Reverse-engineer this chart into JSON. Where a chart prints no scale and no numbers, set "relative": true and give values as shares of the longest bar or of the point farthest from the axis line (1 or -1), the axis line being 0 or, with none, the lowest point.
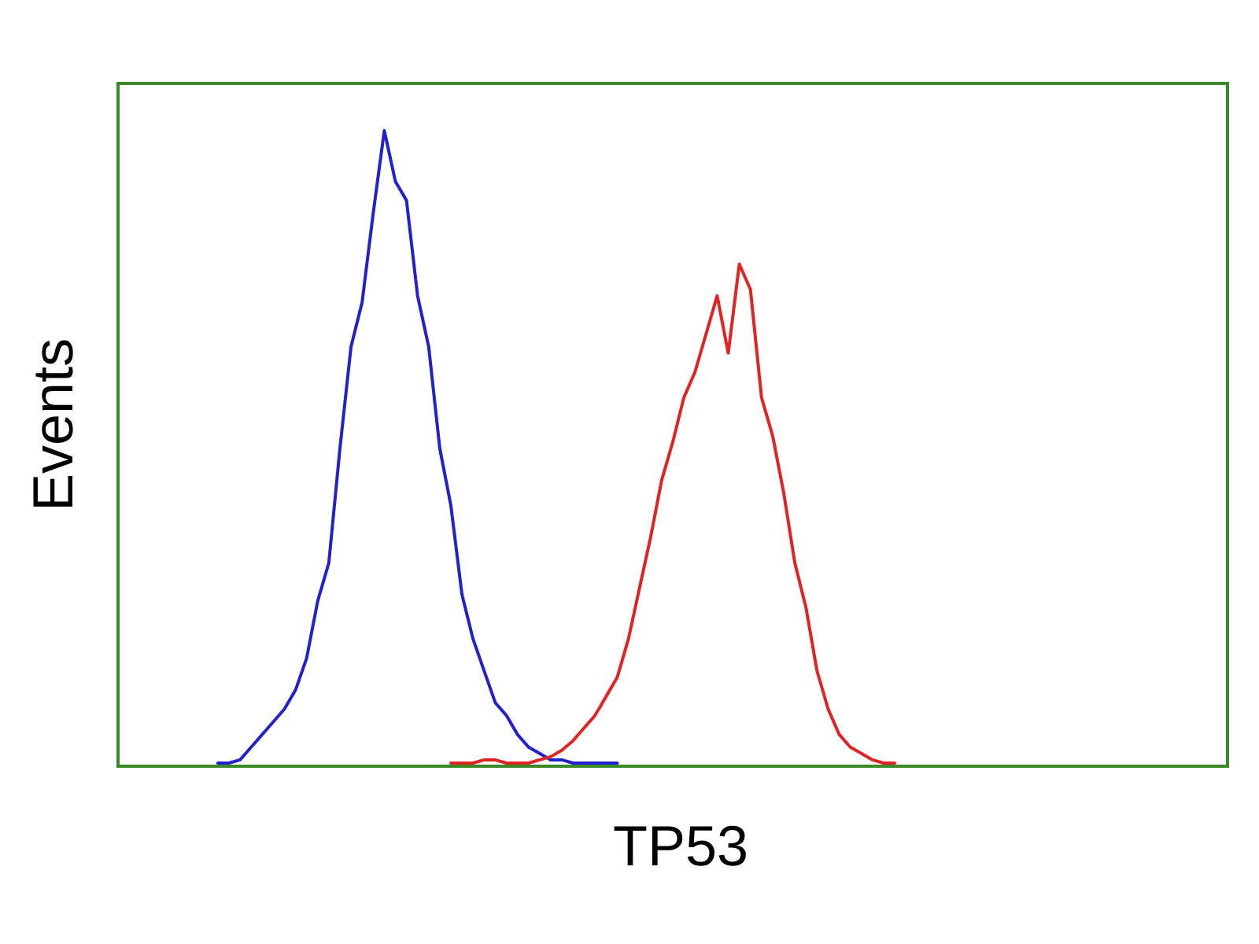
{
  "chart_data": {
    "type": "line",
    "relative": true,
    "xlabel": "TP53",
    "ylabel": "Events",
    "categories": [
      null,
      null,
      null,
      null,
      null,
      null,
      null,
      null,
      null,
      null,
      null,
      null,
      null,
      null,
      null,
      null,
      null,
      null,
      null,
      null,
      null,
      null,
      null,
      null,
      null,
      null,
      null,
      null,
      null,
      null,
      null,
      null,
      null,
      null,
      null,
      null,
      null,
      null,
      null,
      null,
      null,
      null,
      null,
      null,
      null,
      null,
      null,
      null,
      null,
      null,
      null,
      null,
      null,
      null,
      null,
      null,
      null,
      null,
      null,
      null,
      null,
      null,
      null,
      null,
      null,
      null,
      null,
      null,
      null,
      null,
      null,
      null,
      null,
      null,
      null,
      null,
      null,
      null,
      null,
      null,
      null,
      null,
      null,
      null,
      null,
      null,
      null,
      null,
      null,
      null,
      null,
      null,
      null,
      null,
      null,
      null,
      null,
      null,
      null,
      null,
      null
    ],
    "series": [
      {
        "color": "#2222cc",
        "values": [
          null,
          null,
          null,
          null,
          null,
          null,
          null,
          null,
          null,
          0.005,
          0.005,
          0.01,
          0.03,
          0.05,
          0.07,
          0.09,
          0.12,
          0.17,
          0.26,
          0.32,
          0.5,
          0.66,
          0.73,
          0.87,
          1.0,
          0.92,
          0.89,
          0.74,
          0.66,
          0.5,
          0.41,
          0.27,
          0.2,
          0.15,
          0.1,
          0.08,
          0.05,
          0.03,
          0.02,
          0.01,
          0.01,
          0.005,
          0.005,
          0.005,
          0.005,
          0.005,
          null,
          null,
          null,
          null,
          null,
          null,
          null,
          null,
          null,
          null,
          null,
          null,
          null,
          null,
          null,
          null,
          null,
          null,
          null,
          null,
          null,
          null,
          null,
          null,
          null,
          null,
          null,
          null,
          null,
          null,
          null,
          null,
          null,
          null,
          null,
          null,
          null,
          null,
          null,
          null,
          null,
          null,
          null,
          null,
          null,
          null,
          null,
          null,
          null,
          null,
          null,
          null,
          null,
          null,
          null
        ]
      },
      {
        "color": "#e02424",
        "values": [
          null,
          null,
          null,
          null,
          null,
          null,
          null,
          null,
          null,
          null,
          null,
          null,
          null,
          null,
          null,
          null,
          null,
          null,
          null,
          null,
          null,
          null,
          null,
          null,
          null,
          null,
          null,
          null,
          null,
          null,
          0.005,
          0.005,
          0.005,
          0.01,
          0.01,
          0.005,
          0.005,
          0.005,
          0.01,
          0.015,
          0.025,
          0.04,
          0.06,
          0.08,
          0.11,
          0.14,
          0.2,
          0.28,
          0.36,
          0.45,
          0.51,
          0.58,
          0.62,
          0.68,
          0.74,
          0.65,
          0.79,
          0.75,
          0.58,
          0.52,
          0.43,
          0.32,
          0.25,
          0.15,
          0.09,
          0.05,
          0.03,
          0.02,
          0.01,
          0.005,
          0.005,
          null,
          null,
          null,
          null,
          null,
          null,
          null,
          null,
          null,
          null,
          null,
          null,
          null,
          null,
          null,
          null,
          null,
          null,
          null,
          null,
          null,
          null,
          null,
          null,
          null,
          null,
          null,
          null,
          null,
          null
        ]
      }
    ]
  }
}
